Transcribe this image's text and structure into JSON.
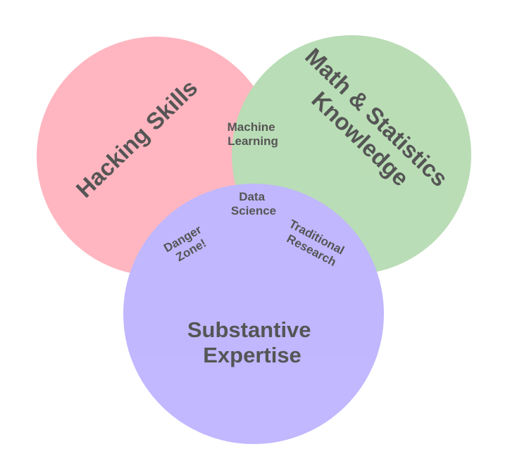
{
  "diagram": {
    "type": "venn",
    "colors": {
      "hacking": "#ff9aa8",
      "math": "#9fd09a",
      "substantive": "#a99cff",
      "text": "#555555"
    },
    "sets": {
      "hacking": {
        "lines": [
          "Hacking Skills"
        ]
      },
      "math": {
        "lines": [
          "Math & Statistics",
          "Knowledge"
        ]
      },
      "substantive": {
        "lines": [
          "Substantive",
          "Expertise"
        ]
      }
    },
    "intersections": {
      "machine_learning": {
        "lines": [
          "Machine",
          "Learning"
        ]
      },
      "danger_zone": {
        "lines": [
          "Danger",
          "Zone!"
        ]
      },
      "traditional_research": {
        "lines": [
          "Traditional",
          "Research"
        ]
      },
      "data_science": {
        "lines": [
          "Data",
          "Science"
        ]
      }
    }
  }
}
